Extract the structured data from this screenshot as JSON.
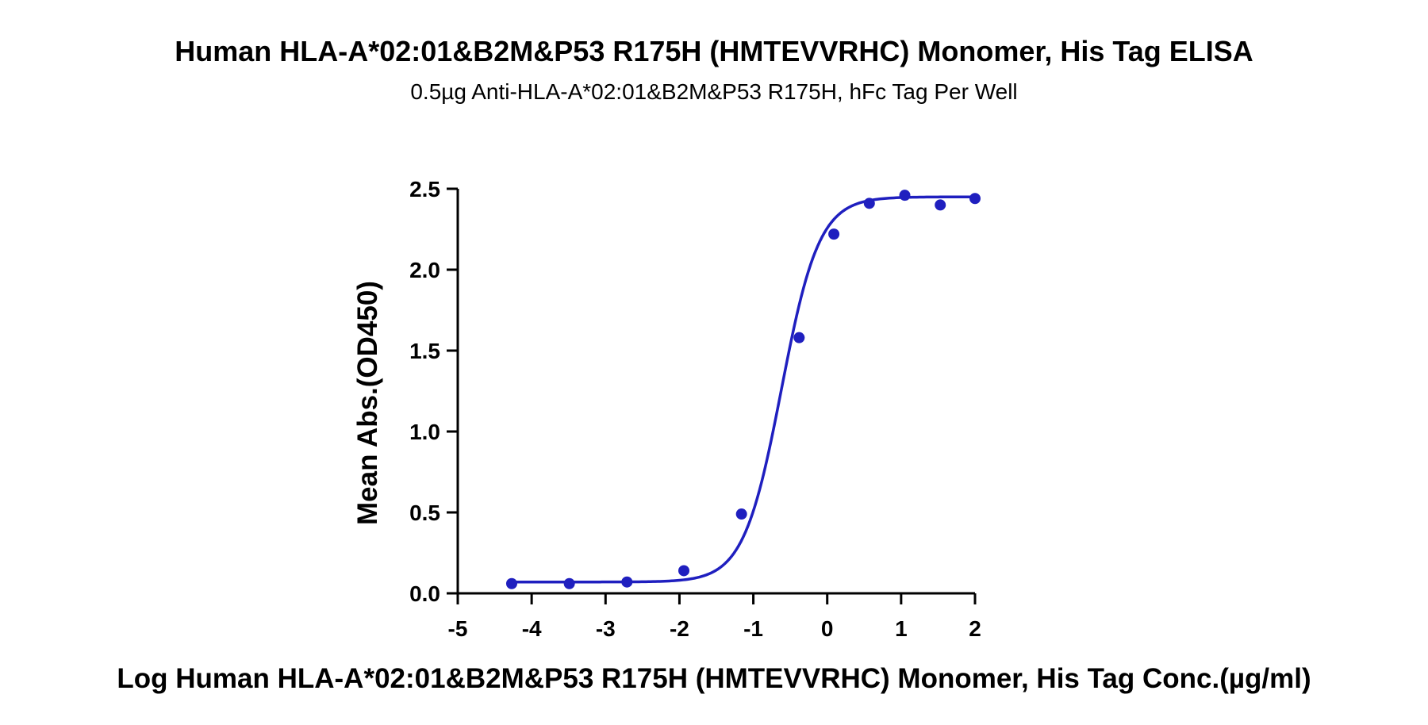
{
  "chart_data": {
    "type": "scatter",
    "title": "Human HLA-A*02:01&B2M&P53 R175H (HMTEVVRHC) Monomer, His Tag ELISA",
    "subtitle": "0.5µg Anti-HLA-A*02:01&B2M&P53 R175H, hFc Tag Per Well",
    "xlabel": "Log Human HLA-A*02:01&B2M&P53 R175H (HMTEVVRHC) Monomer, His Tag Conc.(µg/ml)",
    "ylabel": "Mean Abs.(OD450)",
    "xlim": [
      -5,
      2
    ],
    "ylim": [
      0,
      2.5
    ],
    "x_ticks": [
      -5,
      -4,
      -3,
      -2,
      -1,
      0,
      1,
      2
    ],
    "y_ticks": [
      0.0,
      0.5,
      1.0,
      1.5,
      2.0,
      2.5
    ],
    "x_tick_labels": [
      "-5",
      "-4",
      "-3",
      "-2",
      "-1",
      "0",
      "1",
      "2"
    ],
    "y_tick_labels": [
      "0.0",
      "0.5",
      "1.0",
      "1.5",
      "2.0",
      "2.5"
    ],
    "grid": false,
    "series_color": "#1f1fbf",
    "series": [
      {
        "x": [
          -4.27,
          -3.49,
          -2.71,
          -1.94,
          -1.16,
          -0.38,
          0.09,
          0.57,
          1.05,
          1.53,
          2.0
        ],
        "y": [
          0.06,
          0.06,
          0.07,
          0.14,
          0.49,
          1.58,
          2.22,
          2.41,
          2.46,
          2.4,
          2.44
        ]
      }
    ],
    "fit": {
      "model": "4PL",
      "bottom": 0.07,
      "top": 2.45,
      "log_ec50": -0.62,
      "hill_slope": 1.7
    }
  }
}
